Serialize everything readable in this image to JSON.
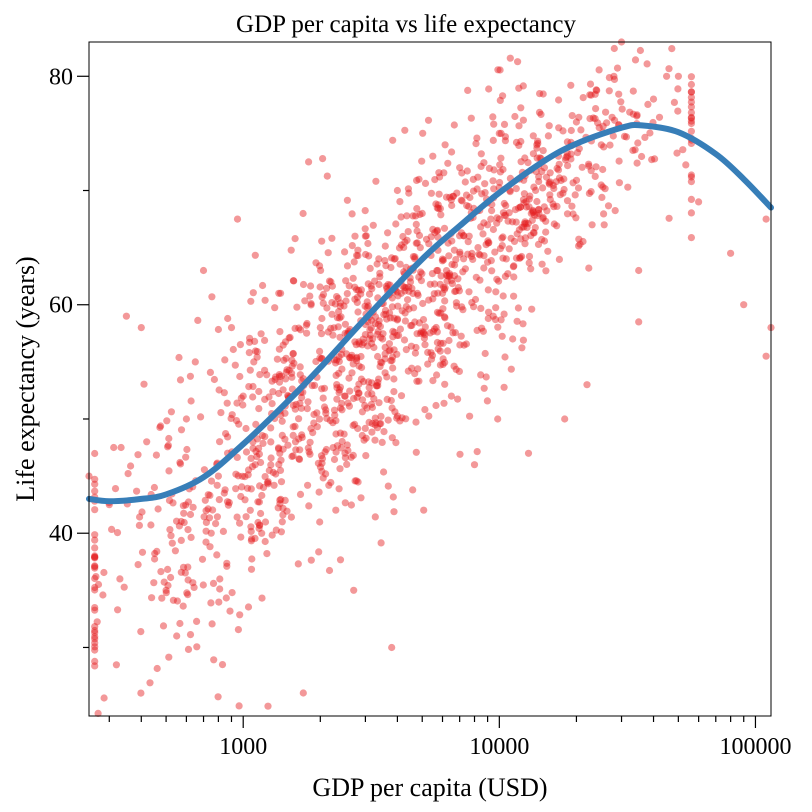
{
  "chart_data": {
    "type": "scatter",
    "title": "GDP per capita vs life expectancy",
    "xlabel": "GDP per capita (USD)",
    "ylabel": "Life expectancy (years)",
    "x_scale": "log",
    "xlim": [
      250,
      115000
    ],
    "ylim": [
      24,
      83
    ],
    "x_major_ticks": [
      1000,
      10000,
      100000
    ],
    "x_tick_labels": [
      "1000",
      "10000",
      "100000"
    ],
    "y_major_ticks": [
      40,
      60,
      80
    ],
    "y_tick_labels": [
      "40",
      "60",
      "80"
    ],
    "y_minor_ticks": [
      30,
      50,
      70
    ],
    "grid": false,
    "series": [
      {
        "kind": "points",
        "color": "#e41a1c",
        "opacity": 0.45,
        "approx_point_count": 1500,
        "sample_points": [
          [
            250,
            45
          ],
          [
            300,
            42.5
          ],
          [
            330,
            36
          ],
          [
            350,
            59
          ],
          [
            400,
            58
          ],
          [
            420,
            48
          ],
          [
            450,
            44
          ],
          [
            500,
            35
          ],
          [
            550,
            31
          ],
          [
            600,
            50
          ],
          [
            650,
            55
          ],
          [
            700,
            63
          ],
          [
            750,
            40
          ],
          [
            800,
            45
          ],
          [
            830,
            28.5
          ],
          [
            900,
            58
          ],
          [
            950,
            67.5
          ],
          [
            1000,
            52
          ],
          [
            1100,
            55
          ],
          [
            1200,
            44
          ],
          [
            1400,
            61
          ],
          [
            1600,
            48
          ],
          [
            1800,
            72.5
          ],
          [
            2000,
            58
          ],
          [
            2200,
            62
          ],
          [
            2500,
            52
          ],
          [
            2700,
            35
          ],
          [
            3000,
            66
          ],
          [
            3500,
            57
          ],
          [
            3800,
            30
          ],
          [
            4000,
            70
          ],
          [
            4500,
            62
          ],
          [
            5000,
            68
          ],
          [
            5500,
            73
          ],
          [
            6000,
            64
          ],
          [
            6500,
            52
          ],
          [
            7000,
            72
          ],
          [
            8000,
            46
          ],
          [
            9000,
            67
          ],
          [
            10000,
            75
          ],
          [
            11000,
            70
          ],
          [
            12000,
            71
          ],
          [
            13000,
            47
          ],
          [
            14000,
            74
          ],
          [
            15000,
            72
          ],
          [
            17000,
            73
          ],
          [
            18000,
            50
          ],
          [
            20000,
            76
          ],
          [
            22000,
            53
          ],
          [
            25000,
            74
          ],
          [
            28000,
            80
          ],
          [
            30000,
            83
          ],
          [
            35000,
            58.5
          ],
          [
            35000,
            63
          ],
          [
            40000,
            78
          ],
          [
            45000,
            80
          ],
          [
            50000,
            80
          ],
          [
            60000,
            69
          ],
          [
            80000,
            64.5
          ],
          [
            90000,
            60
          ],
          [
            110000,
            67.5
          ],
          [
            110000,
            55.5
          ],
          [
            115000,
            58
          ]
        ]
      },
      {
        "kind": "trend",
        "color": "#377eb8",
        "x": [
          250,
          300,
          400,
          500,
          700,
          1000,
          1500,
          2000,
          3000,
          5000,
          7000,
          10000,
          15000,
          20000,
          30000,
          36000,
          50000,
          70000,
          90000,
          115000
        ],
        "y": [
          43.0,
          42.8,
          43.0,
          43.4,
          44.9,
          47.8,
          51.6,
          54.5,
          58.8,
          64.0,
          66.9,
          69.8,
          72.6,
          74.1,
          75.5,
          75.7,
          75.1,
          73.2,
          71.0,
          68.5
        ]
      }
    ]
  }
}
